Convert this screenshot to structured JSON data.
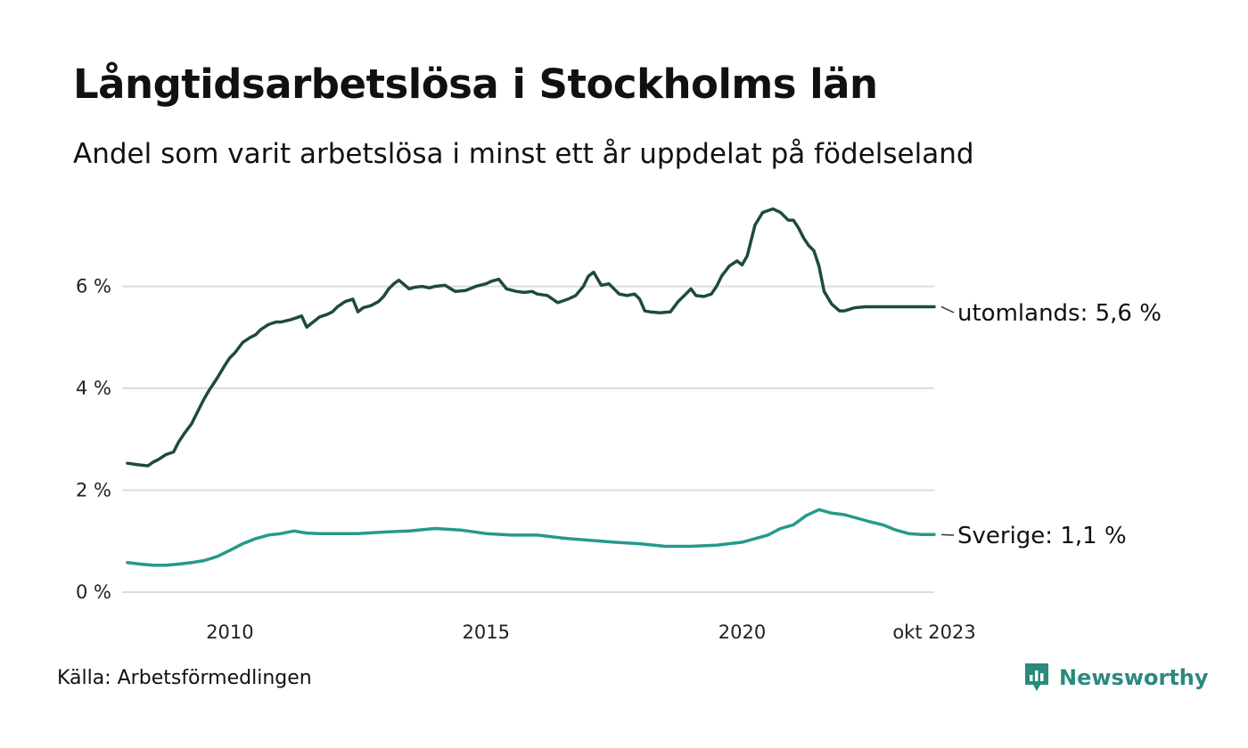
{
  "title": "Långtidsarbetslösa i Stockholms län",
  "subtitle": "Andel som varit arbetslösa i minst ett år uppdelat på födelseland",
  "source": "Källa: Arbetsförmedlingen",
  "brand": {
    "name": "Newsworthy",
    "icon": "newsworthy-logo-icon",
    "color": "#2a8a7d"
  },
  "chart_data": {
    "type": "line",
    "title": "Långtidsarbetslösa i Stockholms län",
    "xlabel": "",
    "ylabel": "",
    "xlim": [
      2008.0,
      2023.75
    ],
    "ylim": [
      0,
      7.6
    ],
    "grid": true,
    "x_ticks": [
      {
        "value": 2010,
        "label": "2010"
      },
      {
        "value": 2015,
        "label": "2015"
      },
      {
        "value": 2020,
        "label": "2020"
      },
      {
        "value": 2023.75,
        "label": "okt 2023"
      }
    ],
    "y_ticks": [
      {
        "value": 0,
        "label": "0 %"
      },
      {
        "value": 2,
        "label": "2 %"
      },
      {
        "value": 4,
        "label": "4 %"
      },
      {
        "value": 6,
        "label": "6 %"
      }
    ],
    "series": [
      {
        "name": "utomlands",
        "end_label": "utomlands: 5,6 %",
        "color": "#1f4a3f",
        "x": [
          2008.0,
          2008.2,
          2008.4,
          2008.5,
          2008.6,
          2008.75,
          2008.9,
          2009.0,
          2009.1,
          2009.25,
          2009.4,
          2009.5,
          2009.6,
          2009.75,
          2009.9,
          2010.0,
          2010.1,
          2010.25,
          2010.4,
          2010.5,
          2010.6,
          2010.75,
          2010.9,
          2011.0,
          2011.2,
          2011.4,
          2011.5,
          2011.6,
          2011.75,
          2011.9,
          2012.0,
          2012.1,
          2012.25,
          2012.4,
          2012.5,
          2012.6,
          2012.75,
          2012.9,
          2013.0,
          2013.1,
          2013.2,
          2013.3,
          2013.5,
          2013.6,
          2013.75,
          2013.9,
          2014.0,
          2014.2,
          2014.4,
          2014.6,
          2014.8,
          2015.0,
          2015.1,
          2015.25,
          2015.4,
          2015.6,
          2015.75,
          2015.9,
          2016.0,
          2016.2,
          2016.4,
          2016.6,
          2016.75,
          2016.9,
          2017.0,
          2017.1,
          2017.25,
          2017.4,
          2017.6,
          2017.75,
          2017.9,
          2018.0,
          2018.1,
          2018.2,
          2018.4,
          2018.6,
          2018.75,
          2018.9,
          2019.0,
          2019.1,
          2019.25,
          2019.4,
          2019.5,
          2019.6,
          2019.75,
          2019.9,
          2020.0,
          2020.1,
          2020.25,
          2020.4,
          2020.6,
          2020.75,
          2020.9,
          2021.0,
          2021.1,
          2021.2,
          2021.3,
          2021.4,
          2021.5,
          2021.6,
          2021.75,
          2021.9,
          2022.0,
          2022.2,
          2022.4,
          2022.6,
          2022.75,
          2022.9,
          2023.0,
          2023.2,
          2023.4,
          2023.6,
          2023.75
        ],
        "values": [
          2.53,
          2.5,
          2.48,
          2.55,
          2.6,
          2.7,
          2.75,
          2.95,
          3.1,
          3.3,
          3.6,
          3.8,
          3.97,
          4.2,
          4.45,
          4.6,
          4.7,
          4.9,
          5.0,
          5.05,
          5.15,
          5.25,
          5.3,
          5.3,
          5.35,
          5.42,
          5.2,
          5.28,
          5.4,
          5.45,
          5.5,
          5.6,
          5.7,
          5.75,
          5.5,
          5.58,
          5.62,
          5.7,
          5.8,
          5.95,
          6.05,
          6.12,
          5.95,
          5.98,
          6.0,
          5.97,
          6.0,
          6.02,
          5.9,
          5.92,
          6.0,
          6.05,
          6.1,
          6.14,
          5.95,
          5.9,
          5.88,
          5.9,
          5.85,
          5.82,
          5.68,
          5.75,
          5.82,
          6.0,
          6.2,
          6.28,
          6.02,
          6.05,
          5.85,
          5.82,
          5.85,
          5.75,
          5.52,
          5.5,
          5.48,
          5.5,
          5.7,
          5.85,
          5.95,
          5.82,
          5.8,
          5.85,
          6.0,
          6.2,
          6.4,
          6.5,
          6.42,
          6.6,
          7.2,
          7.45,
          7.52,
          7.45,
          7.3,
          7.3,
          7.15,
          6.95,
          6.8,
          6.7,
          6.4,
          5.9,
          5.65,
          5.52,
          5.52,
          5.58,
          5.6,
          5.6,
          5.6,
          5.6,
          5.6,
          5.6,
          5.6,
          5.6,
          5.6
        ]
      },
      {
        "name": "Sverige",
        "end_label": "Sverige: 1,1 %",
        "color": "#26998a",
        "x": [
          2008.0,
          2008.25,
          2008.5,
          2008.75,
          2009.0,
          2009.25,
          2009.5,
          2009.75,
          2010.0,
          2010.25,
          2010.5,
          2010.75,
          2011.0,
          2011.25,
          2011.5,
          2011.75,
          2012.0,
          2012.5,
          2013.0,
          2013.5,
          2014.0,
          2014.5,
          2015.0,
          2015.5,
          2016.0,
          2016.5,
          2017.0,
          2017.5,
          2018.0,
          2018.5,
          2019.0,
          2019.5,
          2020.0,
          2020.25,
          2020.5,
          2020.75,
          2021.0,
          2021.25,
          2021.5,
          2021.75,
          2022.0,
          2022.25,
          2022.5,
          2022.75,
          2023.0,
          2023.25,
          2023.5,
          2023.75
        ],
        "values": [
          0.58,
          0.55,
          0.53,
          0.53,
          0.55,
          0.58,
          0.62,
          0.7,
          0.82,
          0.95,
          1.05,
          1.12,
          1.15,
          1.2,
          1.16,
          1.15,
          1.15,
          1.15,
          1.18,
          1.2,
          1.25,
          1.22,
          1.15,
          1.12,
          1.12,
          1.06,
          1.02,
          0.98,
          0.95,
          0.9,
          0.9,
          0.92,
          0.98,
          1.05,
          1.12,
          1.25,
          1.32,
          1.5,
          1.62,
          1.55,
          1.52,
          1.45,
          1.38,
          1.32,
          1.22,
          1.15,
          1.13,
          1.13
        ]
      }
    ]
  }
}
